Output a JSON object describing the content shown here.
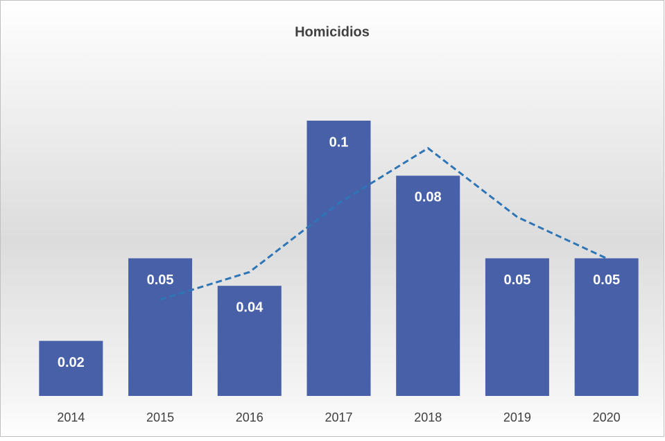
{
  "chart_data": {
    "type": "bar",
    "title": "Homicidios",
    "categories": [
      "2014",
      "2015",
      "2016",
      "2017",
      "2018",
      "2019",
      "2020"
    ],
    "series": [
      {
        "type": "bar",
        "color": "#4760a8",
        "values": [
          0.02,
          0.05,
          0.04,
          0.1,
          0.08,
          0.05,
          0.05
        ]
      },
      {
        "type": "line",
        "color": "#2e75b6",
        "dashed": true,
        "values": [
          null,
          0.035,
          0.045,
          0.07,
          0.09,
          0.065,
          0.05
        ]
      }
    ],
    "ylim": [
      0,
      0.1
    ]
  }
}
